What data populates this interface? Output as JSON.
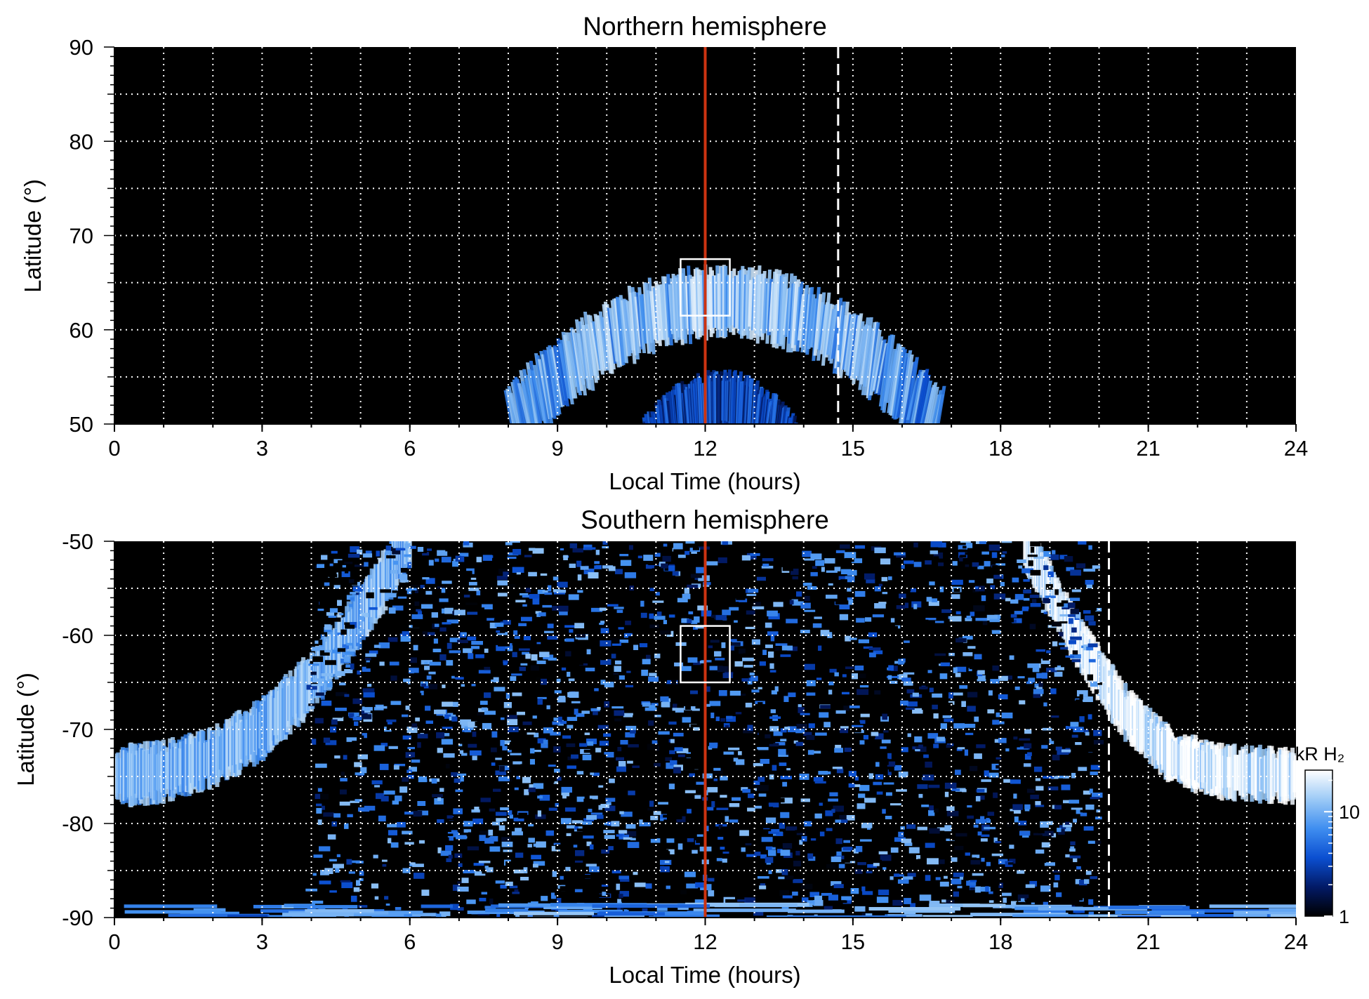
{
  "chart_data": [
    {
      "type": "heatmap",
      "title": "Northern hemisphere",
      "xlabel": "Local Time (hours)",
      "ylabel": "Latitude (°)",
      "xlim": [
        0,
        24
      ],
      "ylim": [
        50,
        90
      ],
      "xticks": [
        0,
        3,
        6,
        9,
        12,
        15,
        18,
        21,
        24
      ],
      "xtick_labels": [
        "0",
        "3",
        "6",
        "9",
        "12",
        "15",
        "18",
        "21",
        "24"
      ],
      "yticks": [
        50,
        60,
        70,
        80,
        90
      ],
      "ytick_labels": [
        "50",
        "60",
        "70",
        "80",
        "90"
      ],
      "grid": true,
      "grid_x_step_hours": 1,
      "grid_y_step_deg": 5,
      "red_line_local_time": 12,
      "dashed_line": {
        "local_time": 14.7,
        "lat_range": [
          50,
          90
        ]
      },
      "box": {
        "local_time_range": [
          11.5,
          12.5
        ],
        "lat_range": [
          61.5,
          67.5
        ]
      },
      "emission_features": [
        {
          "name": "main oval arc",
          "center_local_time": 12.4,
          "lat_peak": 63,
          "lat_width": 6,
          "local_time_halfwidth": 4.2,
          "intensity_kR": 14
        },
        {
          "name": "inner emission",
          "center_local_time": 12.3,
          "lat_peak": 52.5,
          "lat_width": 5,
          "local_time_halfwidth": 2.2,
          "intensity_kR": 4
        }
      ]
    },
    {
      "type": "heatmap",
      "title": "Southern hemisphere",
      "xlabel": "Local Time (hours)",
      "ylabel": "Latitude (°)",
      "xlim": [
        0,
        24
      ],
      "ylim": [
        -90,
        -50
      ],
      "xticks": [
        0,
        3,
        6,
        9,
        12,
        15,
        18,
        21,
        24
      ],
      "xtick_labels": [
        "0",
        "3",
        "6",
        "9",
        "12",
        "15",
        "18",
        "21",
        "24"
      ],
      "yticks": [
        -90,
        -80,
        -70,
        -60,
        -50
      ],
      "ytick_labels": [
        "-90",
        "-80",
        "-70",
        "-60",
        "-50"
      ],
      "grid": true,
      "grid_x_step_hours": 1,
      "grid_y_step_deg": 5,
      "red_line_local_time": 12,
      "dashed_line": {
        "local_time": 20.2,
        "lat_range": [
          -90,
          -50
        ]
      },
      "box": {
        "local_time_range": [
          11.5,
          12.5
        ],
        "lat_range": [
          -65,
          -59
        ]
      },
      "emission_features": [
        {
          "name": "dawn oval arc",
          "path_local_time": [
            0,
            1,
            2,
            3,
            4,
            5,
            6
          ],
          "path_lat": [
            -75,
            -74.5,
            -73,
            -70,
            -65,
            -58,
            -50
          ],
          "width_deg": 5,
          "intensity_kR": 12
        },
        {
          "name": "dusk oval arc",
          "path_local_time": [
            18.5,
            19.5,
            20.5,
            21.5,
            22.5,
            24
          ],
          "path_lat": [
            -50,
            -60,
            -68,
            -73,
            -74.5,
            -75
          ],
          "width_deg": 4.5,
          "intensity_kR": 22
        },
        {
          "name": "polar cap noise",
          "local_time_range": [
            4,
            20
          ],
          "lat_range": [
            -90,
            -50
          ],
          "intensity_kR": 4
        },
        {
          "name": "pole band",
          "lat": -89.5,
          "intensity_kR": 8
        }
      ]
    }
  ],
  "colorbar": {
    "label": "kR H₂",
    "scale": "log",
    "range": [
      1,
      25
    ],
    "ticks": [
      1,
      10
    ],
    "tick_labels": [
      "1",
      "10"
    ],
    "colors": [
      "#000000",
      "#021a66",
      "#0b4fd1",
      "#3f8ef0",
      "#9ccaf6",
      "#ffffff"
    ]
  },
  "line_colors": {
    "red_line": "#cc3311",
    "grid": "#ffffff",
    "box": "#ffffff"
  }
}
